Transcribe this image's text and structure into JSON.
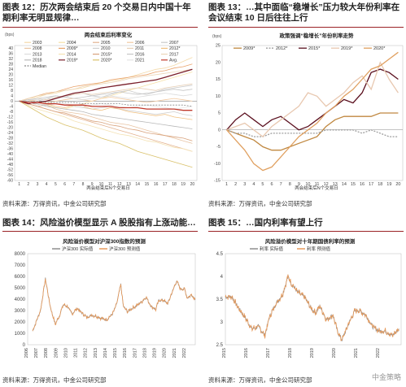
{
  "page": {
    "fig12_title": "图表 12：历次两会结束后 20 个交易日内中国十年期利率无明显规律…",
    "fig13_title": "图表 13：…其中面临“稳增长”压力较大年份利率在会议结束 10 日后往往上行",
    "fig14_title": "图表 14：风险溢价模型显示 A 股股指有上涨动能…",
    "fig15_title": "图表 15：…国内利率有望上行",
    "source_top_left": "资料来源：万得资讯，中金公司研究部",
    "source_top_right": "资料来源：万得资讯，中金公司研究部",
    "source_bottom_left": "资料来源：万得资讯，中金公司研究部",
    "source_bottom_right": "资料来源：万得资讯，中金公司研究部",
    "watermark": "中金策略"
  },
  "chart_data": [
    {
      "id": "fig12",
      "type": "line",
      "title": "两会结束后利率变化",
      "ylabel": "(bps)",
      "xlabel": "两会结束后N个交易日",
      "x": [
        1,
        2,
        3,
        4,
        5,
        6,
        7,
        8,
        9,
        10,
        11,
        12,
        13,
        14,
        15,
        16,
        17,
        18,
        19,
        20
      ],
      "ylim": [
        -60,
        42
      ],
      "yticks": [
        -60,
        -56,
        -52,
        -48,
        -44,
        -40,
        -36,
        -32,
        -28,
        -24,
        -20,
        -16,
        -12,
        -8,
        -4,
        0,
        4,
        8,
        12,
        16,
        20,
        24,
        28,
        32,
        36,
        40
      ],
      "legend_labels": [
        "2003",
        "2004",
        "2005",
        "2006",
        "2007",
        "2008",
        "2009*",
        "2010",
        "2011",
        "2012*",
        "2013",
        "2014",
        "2015*",
        "2016",
        "2017",
        "2018",
        "2019*",
        "2020*",
        "2021",
        "Avg.",
        "Median"
      ],
      "series": [
        {
          "name": "2003",
          "color": "#f3d9a8",
          "values": [
            0,
            2,
            3,
            5,
            6,
            8,
            9,
            10,
            12,
            14,
            15,
            16,
            18,
            20,
            22,
            24,
            25,
            27,
            30,
            33
          ]
        },
        {
          "name": "2004",
          "color": "#f6e0a6",
          "values": [
            0,
            1,
            -2,
            -3,
            -5,
            -6,
            -4,
            -2,
            0,
            2,
            4,
            6,
            8,
            10,
            12,
            14,
            16,
            18,
            20,
            22
          ]
        },
        {
          "name": "2005",
          "color": "#e3b28f",
          "values": [
            0,
            -2,
            -4,
            -6,
            -8,
            -10,
            -12,
            -14,
            -16,
            -18,
            -20,
            -22,
            -24,
            -26,
            -28,
            -30,
            -32,
            -34,
            -36,
            -38
          ]
        },
        {
          "name": "2006",
          "color": "#f2c9a0",
          "values": [
            0,
            1,
            0,
            -1,
            0,
            1,
            2,
            1,
            0,
            2,
            3,
            2,
            1,
            0,
            -1,
            0,
            1,
            2,
            1,
            0
          ]
        },
        {
          "name": "2007",
          "color": "#c9c9c9",
          "values": [
            0,
            -1,
            0,
            2,
            4,
            3,
            5,
            6,
            4,
            3,
            5,
            7,
            8,
            6,
            5,
            7,
            9,
            10,
            11,
            12
          ]
        },
        {
          "name": "2008",
          "color": "#e8c4a3",
          "values": [
            0,
            -2,
            -4,
            -3,
            -6,
            -8,
            -9,
            -10,
            -12,
            -14,
            -16,
            -17,
            -18,
            -20,
            -22,
            -24,
            -26,
            -28,
            -30,
            -32
          ]
        },
        {
          "name": "2009*",
          "color": "#e9a36b",
          "values": [
            0,
            2,
            4,
            6,
            7,
            9,
            11,
            12,
            13,
            14,
            16,
            17,
            18,
            19,
            20,
            22,
            23,
            25,
            26,
            28
          ]
        },
        {
          "name": "2010",
          "color": "#cfcfcf",
          "values": [
            0,
            -1,
            -2,
            -3,
            -2,
            -3,
            -4,
            -5,
            -6,
            -5,
            -4,
            -6,
            -7,
            -8,
            -9,
            -10,
            -9,
            -8,
            -10,
            -11
          ]
        },
        {
          "name": "2011",
          "color": "#e7cfb6",
          "values": [
            0,
            1,
            2,
            1,
            3,
            4,
            5,
            6,
            5,
            6,
            7,
            8,
            9,
            10,
            9,
            8,
            10,
            11,
            12,
            13
          ]
        },
        {
          "name": "2012*",
          "color": "#f0c080",
          "values": [
            0,
            -1,
            -3,
            -2,
            -4,
            -5,
            -3,
            -4,
            -6,
            -7,
            -5,
            -6,
            -8,
            -9,
            -10,
            -11,
            -10,
            -12,
            -13,
            -14
          ]
        },
        {
          "name": "2013",
          "color": "#dcdcdc",
          "values": [
            0,
            1,
            1,
            2,
            2,
            3,
            2,
            1,
            2,
            3,
            4,
            3,
            2,
            3,
            4,
            5,
            6,
            5,
            4,
            5
          ]
        },
        {
          "name": "2014",
          "color": "#f4e2b4",
          "values": [
            0,
            -3,
            -6,
            -8,
            -10,
            -12,
            -15,
            -17,
            -19,
            -21,
            -23,
            -25,
            -26,
            -28,
            -30,
            -31,
            -33,
            -35,
            -36,
            -38
          ]
        },
        {
          "name": "2015*",
          "color": "#d8a27c",
          "values": [
            0,
            -2,
            -4,
            -6,
            -8,
            -9,
            -11,
            -13,
            -15,
            -16,
            -18,
            -19,
            -21,
            -22,
            -24,
            -25,
            -26,
            -27,
            -28,
            -30
          ]
        },
        {
          "name": "2016",
          "color": "#c6c6c6",
          "values": [
            0,
            1,
            2,
            3,
            4,
            3,
            2,
            3,
            4,
            5,
            6,
            7,
            6,
            5,
            6,
            7,
            8,
            9,
            8,
            9
          ]
        },
        {
          "name": "2017",
          "color": "#ecd6b8",
          "values": [
            0,
            2,
            4,
            5,
            7,
            8,
            9,
            11,
            12,
            13,
            14,
            15,
            17,
            18,
            19,
            20,
            21,
            22,
            23,
            24
          ]
        },
        {
          "name": "2018",
          "color": "#b9b9b9",
          "values": [
            0,
            -1,
            -2,
            -4,
            -5,
            -6,
            -7,
            -8,
            -10,
            -11,
            -12,
            -13,
            -14,
            -15,
            -16,
            -17,
            -18,
            -19,
            -20,
            -21
          ]
        },
        {
          "name": "2019*",
          "color": "#7a1f2b",
          "values": [
            0,
            -2,
            -1,
            0,
            2,
            4,
            6,
            7,
            8,
            10,
            11,
            12,
            13,
            14,
            15,
            16,
            18,
            20,
            22,
            24
          ]
        },
        {
          "name": "2020*",
          "color": "#d9c16a",
          "values": [
            0,
            -4,
            -8,
            -12,
            -15,
            -18,
            -20,
            -22,
            -25,
            -28,
            -30,
            -32,
            -35,
            -38,
            -40,
            -42,
            -44,
            -46,
            -48,
            -50
          ]
        },
        {
          "name": "2021",
          "color": "#e5e5e5",
          "values": [
            0,
            -1,
            -3,
            -2,
            -1,
            -2,
            -3,
            -4,
            -3,
            -2,
            -3,
            -4,
            -5,
            -4,
            -3,
            -4,
            -5,
            -6,
            -5,
            -4
          ]
        },
        {
          "name": "Avg.",
          "color": "#c0392b",
          "values": [
            0,
            -1,
            -1,
            -2,
            -2,
            -3,
            -3,
            -3,
            -4,
            -4,
            -4,
            -5,
            -5,
            -5,
            -6,
            -6,
            -6,
            -6,
            -7,
            -7
          ]
        },
        {
          "name": "Median",
          "color": "#888888",
          "dashed": true,
          "values": [
            0,
            0,
            0,
            -1,
            -1,
            -1,
            -1,
            -2,
            -2,
            -2,
            -2,
            -2,
            -3,
            -3,
            -3,
            -3,
            -3,
            -3,
            -3,
            -4
          ]
        }
      ]
    },
    {
      "id": "fig13",
      "type": "line",
      "title": "政策强调“稳增长”年份利率走势",
      "ylabel": "(bps)",
      "xlabel": "两会结束后N个交易日",
      "x": [
        1,
        2,
        3,
        4,
        5,
        6,
        7,
        8,
        9,
        10,
        11,
        12,
        13,
        14,
        15,
        16,
        17,
        18,
        19,
        20
      ],
      "ylim": [
        -15,
        25
      ],
      "yticks": [
        -15,
        -10,
        -5,
        0,
        5,
        10,
        15,
        20,
        25
      ],
      "series": [
        {
          "name": "2009*",
          "color": "#c08840",
          "values": [
            0,
            -1,
            -2,
            -3,
            -5,
            -6,
            -6,
            -5,
            -4,
            -3,
            -2,
            1,
            3,
            4,
            4,
            4,
            4,
            5,
            5,
            5
          ]
        },
        {
          "name": "2012*",
          "color": "#9e9e9e",
          "dashed": true,
          "values": [
            0,
            -1,
            -1,
            -2,
            -2,
            -1,
            -1,
            -1,
            -1,
            -1,
            -1,
            0,
            0,
            0,
            0,
            -1,
            0,
            -1,
            -2,
            -2
          ]
        },
        {
          "name": "2015*",
          "color": "#5a0f1e",
          "values": [
            0,
            3,
            5,
            3,
            1,
            3,
            4,
            2,
            0,
            1,
            3,
            5,
            7,
            9,
            8,
            11,
            17,
            18,
            17,
            15
          ]
        },
        {
          "name": "2019*",
          "color": "#e8c8b0",
          "values": [
            0,
            1,
            2,
            0,
            -2,
            1,
            3,
            5,
            7,
            11,
            10,
            7,
            9,
            11,
            14,
            16,
            12,
            20,
            15,
            11
          ]
        },
        {
          "name": "2020*",
          "color": "#e0a060",
          "values": [
            0,
            -3,
            -6,
            -10,
            -12,
            -11,
            -8,
            -5,
            -2,
            0,
            2,
            5,
            7,
            10,
            12,
            15,
            18,
            19,
            21,
            23
          ]
        }
      ]
    },
    {
      "id": "fig14",
      "type": "line",
      "title": "风险溢价模型对沪深300指数的预测",
      "ylim": [
        0,
        8000
      ],
      "yticks": [
        0,
        1000,
        2000,
        3000,
        4000,
        5000,
        6000,
        7000,
        8000
      ],
      "xticks": [
        "2006",
        "2007",
        "2008",
        "2009",
        "2010",
        "2011",
        "2012",
        "2013",
        "2014",
        "2015",
        "2016",
        "2017",
        "2018",
        "2019",
        "2020",
        "2021",
        "2022"
      ],
      "series": [
        {
          "name": "沪深300 实际值",
          "color": "#8f8f8f"
        },
        {
          "name": "沪深300 预测值",
          "color": "#e89a5a"
        }
      ],
      "anchors": [
        [
          2006.5,
          1200
        ],
        [
          2007.3,
          3000
        ],
        [
          2007.8,
          5800
        ],
        [
          2008.3,
          3300
        ],
        [
          2008.8,
          1800
        ],
        [
          2009.2,
          2500
        ],
        [
          2009.6,
          3500
        ],
        [
          2010.0,
          3400
        ],
        [
          2010.5,
          2700
        ],
        [
          2011.0,
          3200
        ],
        [
          2011.5,
          2800
        ],
        [
          2012.0,
          2400
        ],
        [
          2012.5,
          2600
        ],
        [
          2013.0,
          2500
        ],
        [
          2013.5,
          2300
        ],
        [
          2014.0,
          2200
        ],
        [
          2014.6,
          2700
        ],
        [
          2015.0,
          3500
        ],
        [
          2015.45,
          5300
        ],
        [
          2015.7,
          3400
        ],
        [
          2016.1,
          2900
        ],
        [
          2016.6,
          3200
        ],
        [
          2017.0,
          3400
        ],
        [
          2017.6,
          3800
        ],
        [
          2018.0,
          4200
        ],
        [
          2018.5,
          3400
        ],
        [
          2019.0,
          3100
        ],
        [
          2019.3,
          3900
        ],
        [
          2019.8,
          3900
        ],
        [
          2020.2,
          3600
        ],
        [
          2020.7,
          4700
        ],
        [
          2021.1,
          5600
        ],
        [
          2021.5,
          4900
        ],
        [
          2021.9,
          4900
        ],
        [
          2022.2,
          4100
        ],
        [
          2022.6,
          4400
        ],
        [
          2023.0,
          4000
        ]
      ]
    },
    {
      "id": "fig15",
      "type": "line",
      "title": "风险溢价模型对十年期国债利率的预测",
      "ylim": [
        2.5,
        4.5
      ],
      "yticks": [
        2.5,
        3,
        3.5,
        4,
        4.5
      ],
      "xticks": [
        "2015",
        "2016",
        "2017",
        "2018",
        "2019",
        "2020",
        "2021",
        "2022"
      ],
      "series": [
        {
          "name": "利率 实际值",
          "color": "#8f8f8f"
        },
        {
          "name": "利率 预测值",
          "color": "#e89a5a"
        }
      ],
      "anchors": [
        [
          2015.0,
          3.55
        ],
        [
          2015.3,
          3.55
        ],
        [
          2015.6,
          3.3
        ],
        [
          2015.9,
          3.1
        ],
        [
          2016.2,
          2.85
        ],
        [
          2016.5,
          2.9
        ],
        [
          2016.8,
          2.7
        ],
        [
          2017.0,
          3.1
        ],
        [
          2017.3,
          3.4
        ],
        [
          2017.6,
          3.6
        ],
        [
          2017.85,
          4.0
        ],
        [
          2018.0,
          3.85
        ],
        [
          2018.3,
          3.65
        ],
        [
          2018.6,
          3.55
        ],
        [
          2018.9,
          3.3
        ],
        [
          2019.1,
          3.2
        ],
        [
          2019.3,
          3.35
        ],
        [
          2019.6,
          3.05
        ],
        [
          2019.9,
          3.15
        ],
        [
          2020.1,
          2.8
        ],
        [
          2020.3,
          2.6
        ],
        [
          2020.6,
          2.95
        ],
        [
          2020.9,
          3.25
        ],
        [
          2021.1,
          3.25
        ],
        [
          2021.4,
          3.15
        ],
        [
          2021.7,
          2.9
        ],
        [
          2022.0,
          2.8
        ],
        [
          2022.3,
          2.8
        ],
        [
          2022.6,
          2.7
        ],
        [
          2022.9,
          2.85
        ]
      ]
    }
  ]
}
